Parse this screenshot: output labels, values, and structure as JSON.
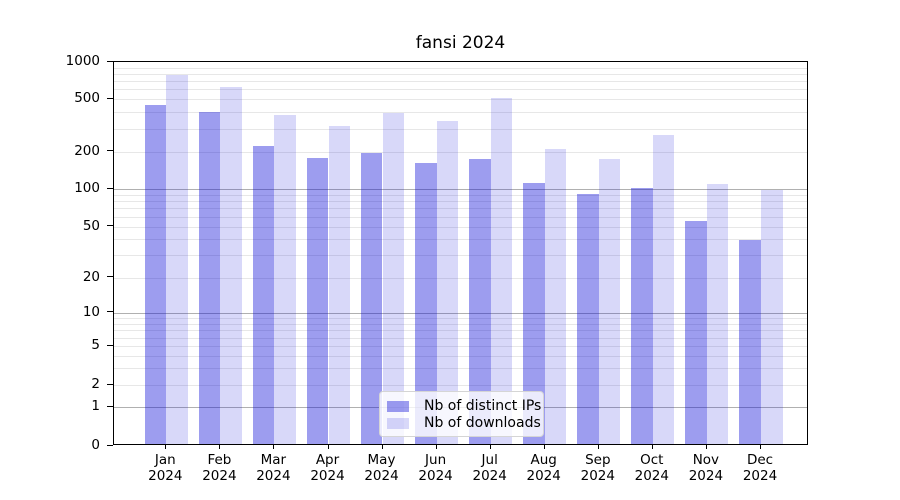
{
  "chart_data": {
    "type": "bar",
    "title": "fansi 2024",
    "categories": [
      "Jan\n2024",
      "Feb\n2024",
      "Mar\n2024",
      "Apr\n2024",
      "May\n2024",
      "Jun\n2024",
      "Jul\n2024",
      "Aug\n2024",
      "Sep\n2024",
      "Oct\n2024",
      "Nov\n2024",
      "Dec\n2024"
    ],
    "series": [
      {
        "name": "Nb of distinct IPs",
        "color": "rgba(10,10,215,0.40)",
        "values": [
          435,
          385,
          215,
          172,
          190,
          158,
          168,
          108,
          88,
          98,
          54,
          38
        ]
      },
      {
        "name": "Nb of downloads",
        "color": "rgba(10,10,215,0.16)",
        "values": [
          760,
          600,
          365,
          305,
          380,
          330,
          490,
          202,
          170,
          260,
          107,
          95
        ]
      }
    ],
    "y_axis": {
      "scale": "symlog",
      "ylim": [
        0,
        1000
      ],
      "ticks": [
        {
          "label": "0",
          "value": 0,
          "f": 0.0
        },
        {
          "label": "1",
          "value": 1,
          "f": 0.1005
        },
        {
          "label": "2",
          "value": 2,
          "f": 0.158
        },
        {
          "label": "5",
          "value": 5,
          "f": 0.2598
        },
        {
          "label": "10",
          "value": 10,
          "f": 0.3467
        },
        {
          "label": "20",
          "value": 20,
          "f": 0.4381
        },
        {
          "label": "50",
          "value": 50,
          "f": 0.5713
        },
        {
          "label": "100",
          "value": 100,
          "f": 0.6689
        },
        {
          "label": "200",
          "value": 200,
          "f": 0.7658
        },
        {
          "label": "500",
          "value": 500,
          "f": 0.9034
        },
        {
          "label": "1000",
          "value": 1000,
          "f": 1.0
        }
      ],
      "major_gridlines": [
        1,
        10,
        100
      ],
      "minor_gridlines": [
        2,
        3,
        4,
        5,
        6,
        7,
        8,
        9,
        20,
        30,
        40,
        50,
        60,
        70,
        80,
        90,
        200,
        300,
        400,
        500,
        600,
        700,
        800,
        900
      ],
      "major_grid_color": "#b0b0b0",
      "minor_grid_color": "#e7e7e7"
    },
    "legend": {
      "position": "lower center"
    },
    "grid": true
  }
}
